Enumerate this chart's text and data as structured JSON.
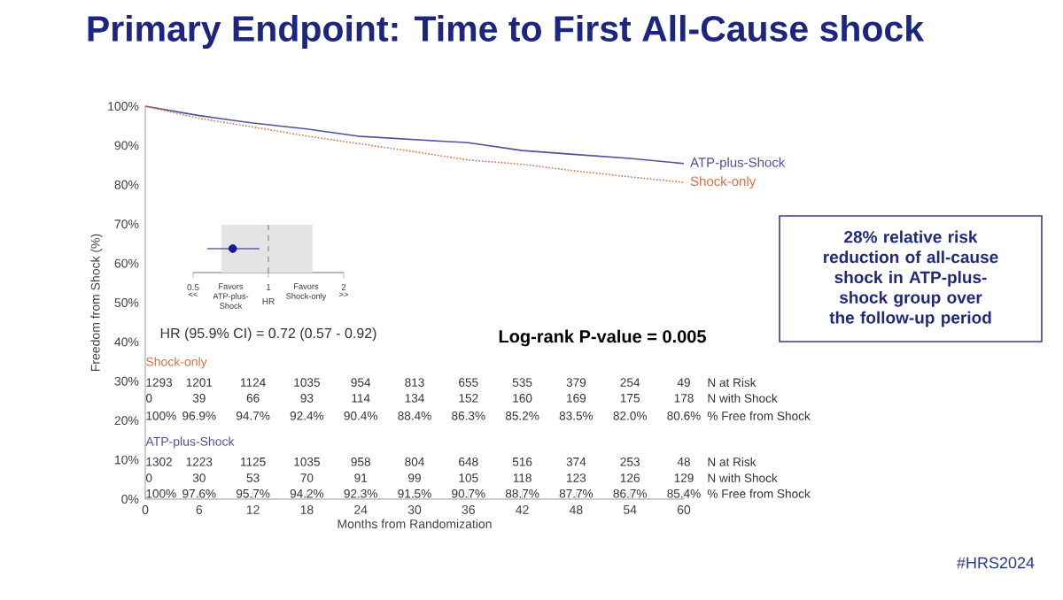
{
  "chart_data": [
    {
      "type": "line",
      "title": "Primary Endpoint: Time to First All-Cause shock",
      "xlabel": "Months from Randomization",
      "ylabel": "Freedom from Shock (%)",
      "x": [
        0,
        6,
        12,
        18,
        24,
        30,
        36,
        42,
        48,
        54,
        60
      ],
      "series": [
        {
          "name": "ATP-plus-Shock",
          "color": "#50509a",
          "line_style": "solid",
          "values": [
            100,
            97.6,
            95.7,
            94.2,
            92.3,
            91.5,
            90.7,
            88.7,
            87.7,
            86.7,
            85.4
          ]
        },
        {
          "name": "Shock-only",
          "color": "#d9704c",
          "line_style": "dotted",
          "values": [
            100,
            96.9,
            94.7,
            92.4,
            90.4,
            88.4,
            86.3,
            85.2,
            83.5,
            82.0,
            80.6
          ]
        }
      ],
      "xlim": [
        0,
        60
      ],
      "xticks": [
        0,
        6,
        12,
        18,
        24,
        30,
        36,
        42,
        48,
        54,
        60
      ],
      "ylim": [
        0,
        100
      ],
      "yticks": [
        {
          "value": 0,
          "label": "0%"
        },
        {
          "value": 10,
          "label": "10%"
        },
        {
          "value": 20,
          "label": "20%"
        },
        {
          "value": 30,
          "label": "30%"
        },
        {
          "value": 40,
          "label": "40%"
        },
        {
          "value": 50,
          "label": "50%"
        },
        {
          "value": 60,
          "label": "60%"
        },
        {
          "value": 70,
          "label": "70%"
        },
        {
          "value": 80,
          "label": "80%"
        },
        {
          "value": 90,
          "label": "90%"
        },
        {
          "value": 100,
          "label": "100%"
        }
      ],
      "annotations": [
        "Log-rank P-value = 0.005",
        "28% relative risk reduction of all-cause shock in ATP-plus-shock group over the follow-up period",
        "#HRS2024",
        "Shock-only",
        "1293",
        "1201",
        "1124",
        "1035",
        "954",
        "813",
        "655",
        "535",
        "379",
        "254",
        "49",
        "N at Risk",
        "0",
        "39",
        "66",
        "93",
        "114",
        "134",
        "152",
        "160",
        "169",
        "175",
        "178",
        "N with Shock",
        "100%",
        "96.9%",
        "94.7%",
        "92.4%",
        "90.4%",
        "88.4%",
        "86.3%",
        "85.2%",
        "83.5%",
        "82.0%",
        "80.6%",
        "% Free from Shock",
        "ATP-plus-Shock",
        "1302",
        "1223",
        "1125",
        "1035",
        "958",
        "804",
        "648",
        "516",
        "374",
        "253",
        "48",
        "N at Risk",
        "0",
        "30",
        "53",
        "70",
        "91",
        "99",
        "105",
        "118",
        "123",
        "126",
        "129",
        "N with Shock",
        "100%",
        "97.6%",
        "95.7%",
        "94.2%",
        "92.3%",
        "91.5%",
        "90.7%",
        "88.7%",
        "87.7%",
        "86.7%",
        "85.4%",
        "% Free from Shock"
      ]
    },
    {
      "type": "scatter",
      "orientation": "horizontal",
      "categories": [
        null
      ],
      "values": [
        0.72
      ],
      "errors": [
        [
          0.57,
          0.92
        ]
      ],
      "color": "#1a1a8c",
      "marker": "circle",
      "log": "x",
      "xlim": [
        0.5,
        2
      ],
      "xticks": [
        0.5,
        1,
        2
      ],
      "xlabel": "HR",
      "ref_lines": [
        {
          "axis": "x",
          "value": 1,
          "line_style": "dashed",
          "color": "#555555"
        }
      ],
      "bands": [
        {
          "axis": "x",
          "from": 0.65,
          "to": 1.5,
          "color": "#e4e4e4"
        }
      ],
      "annotations": [
        "<<",
        "Favors ATP-plus-Shock",
        "Favors Shock-only",
        ">>",
        "HR (95.9% CI) = 0.72 (0.57 - 0.92)"
      ]
    }
  ]
}
